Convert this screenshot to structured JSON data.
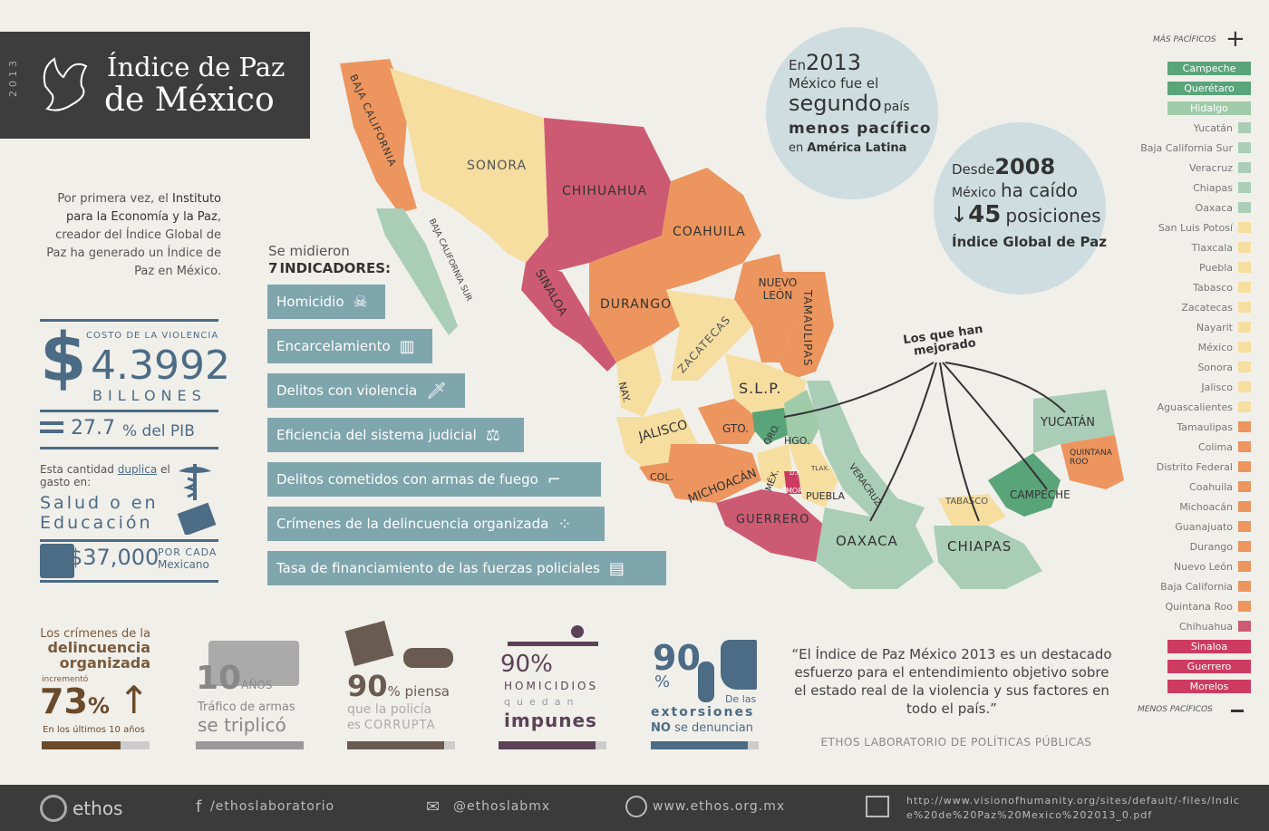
{
  "title": {
    "year": "2013",
    "line1": "Índice de Paz",
    "line2": "de México"
  },
  "intro": {
    "p1": "Por primera vez, el ",
    "b1": "Instituto para la Economía y la Paz",
    "p2": ", creador del Índice Global de Paz ha generado un Índice de Paz en México."
  },
  "costo": {
    "label": "COSTO DE LA VIOLENCIA",
    "symbol": "$",
    "value": "4.3992",
    "unit": "BILLONES",
    "pib_value": "27.7",
    "pib_suffix": "% del PIB",
    "dup1": "Esta cantidad ",
    "dup_b": "duplica",
    "dup2": " el gasto en:",
    "salud": "Salud o en",
    "educ": "Educación",
    "per_cap": "$37,000",
    "por_cada": "POR CADA",
    "mexicano": "Mexicano"
  },
  "indicadores": {
    "intro": "Se midieron",
    "count": "7",
    "word": "INDICADORES:",
    "items": [
      "Homicidio",
      "Encarcelamiento",
      "Delitos con violencia",
      "Eficiencia del sistema judicial",
      "Delitos cometidos con armas de fuego",
      "Crímenes de la delincuencia organizada",
      "Tasa de financiamiento de las fuerzas policiales"
    ]
  },
  "globe1": {
    "en": "En",
    "year": "2013",
    "l2": "México fue el",
    "seg": "segundo",
    "pais": "país",
    "menos": "menos pacífico",
    "en2": "en",
    "al": "América Latina"
  },
  "globe2": {
    "desde": "Desde",
    "year": "2008",
    "mex": "México",
    "caido": "ha caído",
    "arrow": "↓",
    "num": "45",
    "pos": "posiciones",
    "igp": "Índice Global de Paz"
  },
  "mejorado": "Los que han mejorado",
  "states": [
    "BAJA CALIFORNIA",
    "SONORA",
    "CHIHUAHUA",
    "COAHUILA",
    "BAJA CALIFORNIA SUR",
    "SINALOA",
    "DURANGO",
    "NUEVO LEÓN",
    "TAMAULIPAS",
    "ZACATECAS",
    "S.L.P.",
    "NAY.",
    "JALISCO",
    "GTO.",
    "QRO.",
    "HGO.",
    "COL.",
    "MICHOACÁN",
    "MÉX.",
    "PUEBLA",
    "VERACRUZ",
    "GUERRERO",
    "OAXACA",
    "TABASCO",
    "CHIAPAS",
    "CAMPECHE",
    "YUCATÁN",
    "QUINTANA ROO",
    "MOR.",
    "D.F.",
    "TLAX."
  ],
  "legend": {
    "top": "MÁS PACÍFICOS",
    "bottom": "MENOS PACÍFICOS",
    "items": [
      {
        "n": "Campeche",
        "c": "#5aa47a",
        "hl": true
      },
      {
        "n": "Querétaro",
        "c": "#5aa47a",
        "hl": true
      },
      {
        "n": "Hidalgo",
        "c": "#9fcba9",
        "hl": true
      },
      {
        "n": "Yucatán",
        "c": "#a9cdb6"
      },
      {
        "n": "Baja California Sur",
        "c": "#a9cdb6"
      },
      {
        "n": "Veracruz",
        "c": "#a9cdb6"
      },
      {
        "n": "Chiapas",
        "c": "#a9cdb6"
      },
      {
        "n": "Oaxaca",
        "c": "#a9cdb6"
      },
      {
        "n": "San Luis Potosí",
        "c": "#f6dea0"
      },
      {
        "n": "Tlaxcala",
        "c": "#f6dea0"
      },
      {
        "n": "Puebla",
        "c": "#f6dea0"
      },
      {
        "n": "Tabasco",
        "c": "#f6dea0"
      },
      {
        "n": "Zacatecas",
        "c": "#f6dea0"
      },
      {
        "n": "Nayarit",
        "c": "#f6dea0"
      },
      {
        "n": "México",
        "c": "#f6dea0"
      },
      {
        "n": "Sonora",
        "c": "#f6dea0"
      },
      {
        "n": "Jalisco",
        "c": "#f6dea0"
      },
      {
        "n": "Aguascalientes",
        "c": "#f6dea0"
      },
      {
        "n": "Tamaulipas",
        "c": "#ec955e"
      },
      {
        "n": "Colima",
        "c": "#ec955e"
      },
      {
        "n": "Distrito Federal",
        "c": "#ec955e"
      },
      {
        "n": "Coahuila",
        "c": "#ec955e"
      },
      {
        "n": "Michoacán",
        "c": "#ec955e"
      },
      {
        "n": "Guanajuato",
        "c": "#ec955e"
      },
      {
        "n": "Durango",
        "c": "#ec955e"
      },
      {
        "n": "Nuevo León",
        "c": "#ec955e"
      },
      {
        "n": "Baja California",
        "c": "#ec955e"
      },
      {
        "n": "Quintana Roo",
        "c": "#ec955e"
      },
      {
        "n": "Chihuahua",
        "c": "#cd5a73"
      },
      {
        "n": "Sinaloa",
        "c": "#cd3b62",
        "hl": true
      },
      {
        "n": "Guerrero",
        "c": "#cd3b62",
        "hl": true
      },
      {
        "n": "Morelos",
        "c": "#cd3b62",
        "hl": true
      }
    ]
  },
  "stats": {
    "s1": {
      "a": "Los crímenes de la",
      "b": "delincuencia",
      "c": "organizada",
      "d": "incrementó",
      "e": "73",
      "f": "%",
      "g": "En los últimos 10 años",
      "fill": 0.73
    },
    "s2": {
      "a": "10",
      "b": "AÑOS",
      "c": "Tráfico de armas",
      "d": "se triplicó",
      "fill": 1.0
    },
    "s3": {
      "a": "90",
      "b": "% piensa",
      "c": "que la policía",
      "d": "es",
      "e": "CORRUPTA",
      "fill": 0.9
    },
    "s4": {
      "a": "90%",
      "b": "HOMICIDIOS",
      "c": "quedan",
      "d": "impunes",
      "fill": 0.9
    },
    "s5": {
      "a": "90",
      "b": "%",
      "c": "De las",
      "d": "extorsiones",
      "e": "NO",
      "f": "se denuncian",
      "fill": 0.9
    }
  },
  "quote": {
    "text": "“El Índice de Paz México 2013 es un destacado esfuerzo para el entendimiento objetivo sobre el estado real de la violencia y sus factores en todo el país.”",
    "src": "ETHOS LABORATORIO DE POLÍTICAS PÚBLICAS"
  },
  "footer": {
    "brand": "ethos",
    "fb": "/ethoslaboratorio",
    "tw": "@ethoslabmx",
    "web": "www.ethos.org.mx",
    "url": "http://www.visionofhumanity.org/sites/default/-files/Indice%20de%20Paz%20Mexico%202013_0.pdf"
  }
}
